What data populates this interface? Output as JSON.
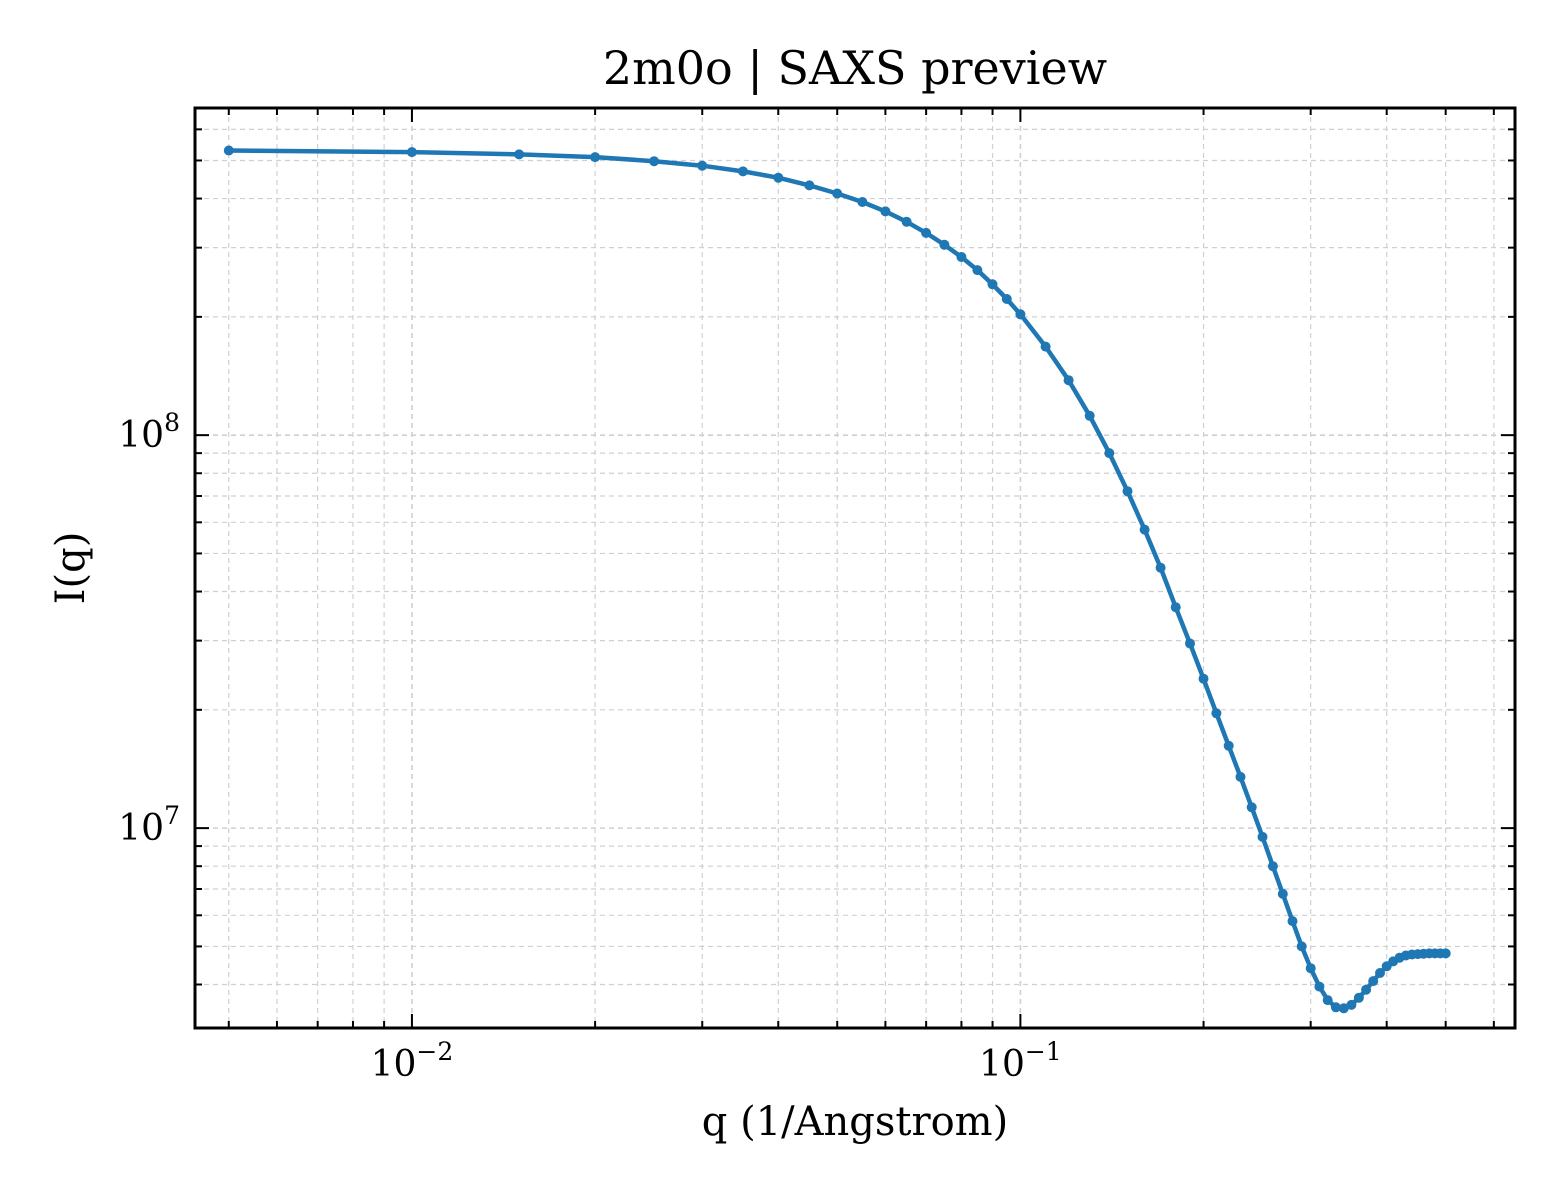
{
  "chart_data": {
    "type": "line",
    "title": "2m0o | SAXS preview",
    "xlabel": "q (1/Angstrom)",
    "ylabel": "I(q)",
    "xscale": "log",
    "yscale": "log",
    "xlim": [
      0.0044,
      0.65
    ],
    "ylim": [
      3100000,
      680000000
    ],
    "grid": true,
    "grid_style": "dashed, major and minor",
    "x_ticks": [
      {
        "base": "10",
        "exp": "−2",
        "value": 0.01
      },
      {
        "base": "10",
        "exp": "−1",
        "value": 0.1
      }
    ],
    "y_ticks": [
      {
        "base": "10",
        "exp": "7",
        "value": 10000000
      },
      {
        "base": "10",
        "exp": "8",
        "value": 100000000
      }
    ],
    "series": [
      {
        "color": "#1f77b4",
        "marker": "circle",
        "points": [
          [
            0.005,
            530000000
          ],
          [
            0.01,
            525000000
          ],
          [
            0.015,
            518000000
          ],
          [
            0.02,
            510000000
          ],
          [
            0.025,
            498000000
          ],
          [
            0.03,
            485000000
          ],
          [
            0.035,
            469000000
          ],
          [
            0.04,
            452000000
          ],
          [
            0.045,
            432000000
          ],
          [
            0.05,
            412000000
          ],
          [
            0.055,
            392000000
          ],
          [
            0.06,
            371000000
          ],
          [
            0.065,
            349000000
          ],
          [
            0.07,
            327000000
          ],
          [
            0.075,
            305000000
          ],
          [
            0.08,
            284000000
          ],
          [
            0.085,
            263000000
          ],
          [
            0.09,
            242000000
          ],
          [
            0.095,
            222000000
          ],
          [
            0.1,
            203000000
          ],
          [
            0.11,
            168000000
          ],
          [
            0.12,
            138000000
          ],
          [
            0.13,
            112000000
          ],
          [
            0.14,
            90000000
          ],
          [
            0.15,
            72000000
          ],
          [
            0.16,
            57500000
          ],
          [
            0.17,
            46000000
          ],
          [
            0.18,
            36500000
          ],
          [
            0.19,
            29500000
          ],
          [
            0.2,
            24000000
          ],
          [
            0.21,
            19600000
          ],
          [
            0.22,
            16200000
          ],
          [
            0.23,
            13500000
          ],
          [
            0.24,
            11300000
          ],
          [
            0.25,
            9500000
          ],
          [
            0.26,
            8000000
          ],
          [
            0.27,
            6800000
          ],
          [
            0.28,
            5800000
          ],
          [
            0.29,
            5000000
          ],
          [
            0.3,
            4400000
          ],
          [
            0.31,
            3950000
          ],
          [
            0.32,
            3650000
          ],
          [
            0.33,
            3500000
          ],
          [
            0.34,
            3480000
          ],
          [
            0.35,
            3550000
          ],
          [
            0.36,
            3700000
          ],
          [
            0.37,
            3880000
          ],
          [
            0.38,
            4080000
          ],
          [
            0.39,
            4280000
          ],
          [
            0.4,
            4450000
          ],
          [
            0.41,
            4580000
          ],
          [
            0.42,
            4680000
          ],
          [
            0.43,
            4740000
          ],
          [
            0.44,
            4770000
          ],
          [
            0.45,
            4780000
          ],
          [
            0.46,
            4790000
          ],
          [
            0.47,
            4800000
          ],
          [
            0.48,
            4800000
          ],
          [
            0.49,
            4800000
          ],
          [
            0.5,
            4800000
          ]
        ]
      }
    ]
  }
}
